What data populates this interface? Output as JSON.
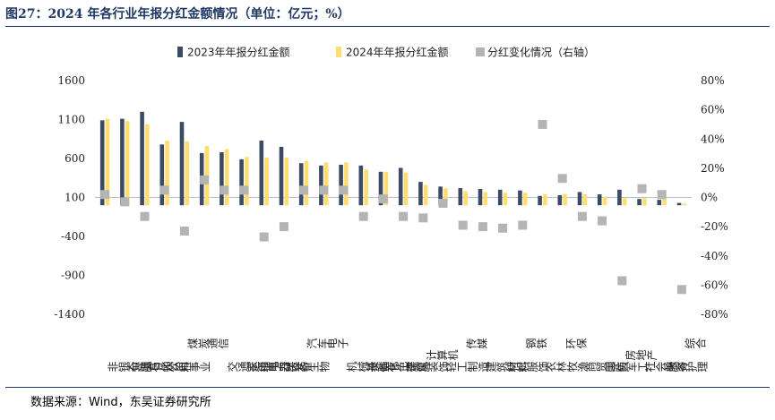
{
  "title": "图27：2024 年各行业年报分红金额情况（单位：亿元；%）",
  "source": "数据来源：Wind，东吴证券研究所",
  "colors": {
    "bar2023": "#3d4a64",
    "bar2024": "#ffdd6e",
    "marker": "#b4b4b4",
    "title": "#1f3864"
  },
  "chart_data": {
    "type": "bar",
    "title": "2024 年各行业年报分红金额情况（单位：亿元；%）",
    "categories": [
      "非银金融",
      "石油石化",
      "食品饮料",
      "公用事业",
      "煤炭",
      "通信",
      "交通运输",
      "家用电器",
      "电力设备",
      "医药生物",
      "汽车",
      "电子",
      "机械设备",
      "基础化工",
      "有色金属",
      "建筑装饰",
      "计算机",
      "轻工制造",
      "传媒",
      "建筑材料",
      "纺织服饰",
      "钢铁",
      "农林牧渔",
      "环保",
      "商贸零售",
      "国防军工",
      "房地产",
      "社会服务",
      "美容护理",
      "综合"
    ],
    "series": [
      {
        "name": "2023年年报分红金额",
        "kind": "bar",
        "axis": "left",
        "values": [
          1090,
          1110,
          1200,
          780,
          1070,
          670,
          680,
          590,
          830,
          750,
          540,
          510,
          520,
          510,
          430,
          480,
          300,
          240,
          220,
          210,
          200,
          190,
          120,
          130,
          170,
          140,
          200,
          80,
          70,
          30
        ]
      },
      {
        "name": "2024年年报分红金额",
        "kind": "bar",
        "axis": "left",
        "values": [
          1110,
          1080,
          1040,
          830,
          820,
          760,
          720,
          620,
          610,
          610,
          570,
          550,
          550,
          460,
          430,
          420,
          260,
          220,
          180,
          170,
          160,
          160,
          140,
          140,
          140,
          110,
          90,
          90,
          80,
          20
        ]
      },
      {
        "name": "分红变化情况（右轴）",
        "kind": "marker",
        "axis": "right",
        "values": [
          2,
          -3,
          -13,
          5,
          -23,
          12,
          5,
          5,
          -27,
          -20,
          5,
          5,
          5,
          -13,
          -1,
          -13,
          -14,
          -4,
          -19,
          -20,
          -21,
          -19,
          50,
          13,
          -13,
          -16,
          -57,
          6,
          2,
          -63
        ]
      }
    ],
    "left_axis": {
      "min": -1400,
      "max": 1600,
      "ticks": [
        1600,
        1100,
        600,
        100,
        -400,
        -900,
        -1400
      ]
    },
    "right_axis": {
      "min": -80,
      "max": 80,
      "ticks": [
        "80%",
        "60%",
        "40%",
        "20%",
        "0%",
        "-20%",
        "-40%",
        "-60%",
        "-80%"
      ]
    },
    "legend_position": "top",
    "grid": false
  }
}
